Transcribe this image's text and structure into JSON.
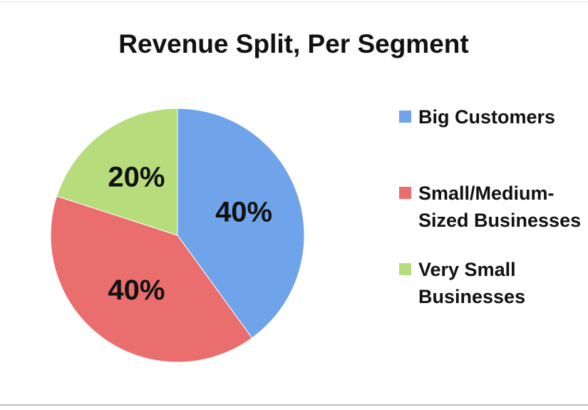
{
  "chart_data": {
    "type": "pie",
    "title": "Revenue Split, Per Segment",
    "categories": [
      "Big Customers",
      "Small/Medium-Sized Businesses",
      "Very Small Businesses"
    ],
    "values": [
      40,
      40,
      20
    ],
    "value_labels": [
      "40%",
      "40%",
      "20%"
    ],
    "colors": [
      "#6fa3ea",
      "#ea6e6e",
      "#b7dc7c"
    ],
    "legend": "right"
  }
}
